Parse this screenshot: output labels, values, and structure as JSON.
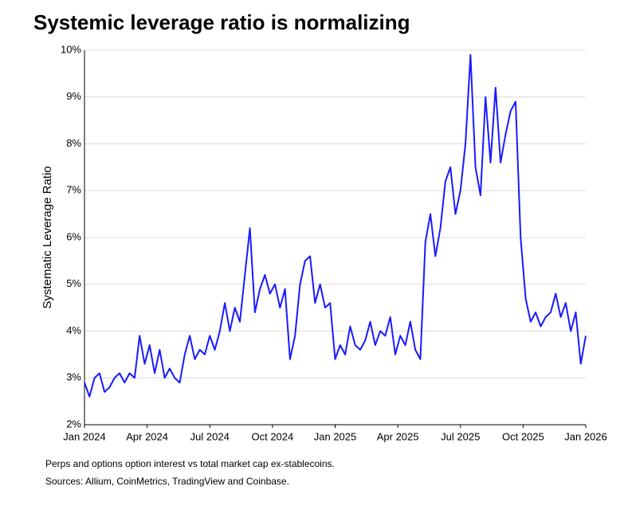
{
  "chart_data": {
    "type": "line",
    "title": "Systemic leverage ratio is normalizing",
    "y_label": "Systematic Leverage Ratio",
    "notes": [
      "Perps and options option interest vs total market cap ex-stablecoins.",
      "Sources: Allium, CoinMetrics, TradingView and Coinbase."
    ],
    "color": "#1a1aff",
    "grid": true,
    "xlim": [
      2024,
      2026
    ],
    "xticks": [
      {
        "value": 2024,
        "label": "Jan 2024"
      },
      {
        "value": 2024.25,
        "label": "Apr 2024"
      },
      {
        "value": 2024.5,
        "label": "Jul 2024"
      },
      {
        "value": 2024.75,
        "label": "Oct 2024"
      },
      {
        "value": 2025,
        "label": "Jan 2025"
      },
      {
        "value": 2025.25,
        "label": "Apr 2025"
      },
      {
        "value": 2025.5,
        "label": "Jul 2025"
      },
      {
        "value": 2025.75,
        "label": "Oct 2025"
      },
      {
        "value": 2026,
        "label": "Jan 2026"
      }
    ],
    "ylim": [
      2,
      10
    ],
    "yticks": [
      {
        "value": 2,
        "label": "2%"
      },
      {
        "value": 3,
        "label": "3%"
      },
      {
        "value": 4,
        "label": "4%"
      },
      {
        "value": 5,
        "label": "5%"
      },
      {
        "value": 6,
        "label": "6%"
      },
      {
        "value": 7,
        "label": "7%"
      },
      {
        "value": 8,
        "label": "8%"
      },
      {
        "value": 9,
        "label": "9%"
      },
      {
        "value": 10,
        "label": "10%"
      }
    ],
    "x": [
      2024,
      2024.02,
      2024.04,
      2024.06,
      2024.08,
      2024.1,
      2024.12,
      2024.14,
      2024.16,
      2024.18,
      2024.2,
      2024.22,
      2024.24,
      2024.26,
      2024.28,
      2024.3,
      2024.32,
      2024.34,
      2024.36,
      2024.38,
      2024.4,
      2024.42,
      2024.44,
      2024.46,
      2024.48,
      2024.5,
      2024.52,
      2024.54,
      2024.56,
      2024.58,
      2024.6,
      2024.62,
      2024.64,
      2024.66,
      2024.68,
      2024.7,
      2024.72,
      2024.74,
      2024.76,
      2024.78,
      2024.8,
      2024.82,
      2024.84,
      2024.86,
      2024.88,
      2024.9,
      2024.92,
      2024.94,
      2024.96,
      2024.98,
      2025,
      2025.02,
      2025.04,
      2025.06,
      2025.08,
      2025.1,
      2025.12,
      2025.14,
      2025.16,
      2025.18,
      2025.2,
      2025.22,
      2025.24,
      2025.26,
      2025.28,
      2025.3,
      2025.32,
      2025.34,
      2025.36,
      2025.38,
      2025.4,
      2025.42,
      2025.44,
      2025.46,
      2025.48,
      2025.5,
      2025.52,
      2025.54,
      2025.56,
      2025.58,
      2025.6,
      2025.62,
      2025.64,
      2025.66,
      2025.68,
      2025.7,
      2025.72,
      2025.74,
      2025.76,
      2025.78,
      2025.8,
      2025.82,
      2025.84,
      2025.86,
      2025.88,
      2025.9,
      2025.92,
      2025.94,
      2025.96,
      2025.98,
      2026
    ],
    "values": [
      2.9,
      2.6,
      3.0,
      3.1,
      2.7,
      2.8,
      3.0,
      3.1,
      2.9,
      3.1,
      3.0,
      3.9,
      3.3,
      3.7,
      3.1,
      3.6,
      3.0,
      3.2,
      3.0,
      2.9,
      3.5,
      3.9,
      3.4,
      3.6,
      3.5,
      3.9,
      3.6,
      4.0,
      4.6,
      4.0,
      4.5,
      4.2,
      5.2,
      6.2,
      4.4,
      4.9,
      5.2,
      4.8,
      5.0,
      4.5,
      4.9,
      3.4,
      3.9,
      5.0,
      5.5,
      5.6,
      4.6,
      5.0,
      4.5,
      4.6,
      3.4,
      3.7,
      3.5,
      4.1,
      3.7,
      3.6,
      3.8,
      4.2,
      3.7,
      4.0,
      3.9,
      4.3,
      3.5,
      3.9,
      3.7,
      4.2,
      3.6,
      3.4,
      5.9,
      6.5,
      5.6,
      6.2,
      7.2,
      7.5,
      6.5,
      7.0,
      8.0,
      9.9,
      7.5,
      6.9,
      9.0,
      7.6,
      9.2,
      7.6,
      8.2,
      8.7,
      8.9,
      6.0,
      4.7,
      4.2,
      4.4,
      4.1,
      4.3,
      4.4,
      4.8,
      4.3,
      4.6,
      4.0,
      4.4,
      3.3,
      3.9
    ]
  }
}
